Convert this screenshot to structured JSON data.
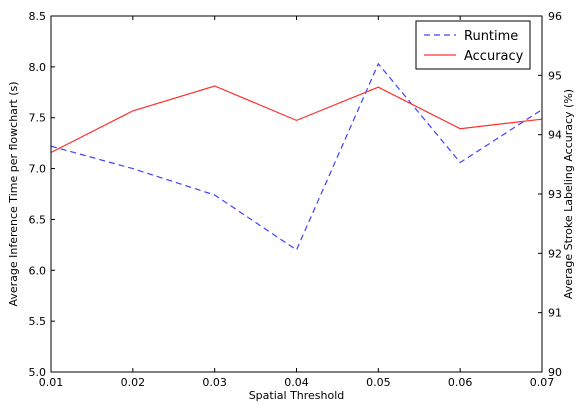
{
  "chart_data": {
    "type": "line",
    "x": [
      0.01,
      0.02,
      0.03,
      0.04,
      0.05,
      0.06,
      0.07
    ],
    "xlabel": "Spatial Threshold",
    "xlim": [
      0.01,
      0.07
    ],
    "x_ticks": [
      "0.01",
      "0.02",
      "0.03",
      "0.04",
      "0.05",
      "0.06",
      "0.07"
    ],
    "ylabel_left": "Average Inference Time per flowchart (s)",
    "ylim_left": [
      5.0,
      8.5
    ],
    "y_ticks_left": [
      "5.0",
      "5.5",
      "6.0",
      "6.5",
      "7.0",
      "7.5",
      "8.0",
      "8.5"
    ],
    "ylabel_right": "Average Stroke Labeling Accuracy (%)",
    "ylim_right": [
      90,
      96
    ],
    "y_ticks_right": [
      "90",
      "91",
      "92",
      "93",
      "94",
      "95",
      "96"
    ],
    "grid": false,
    "legend_position": "top-right",
    "series": [
      {
        "name": "Runtime",
        "axis": "left",
        "style": "dashed",
        "color": "#4040ff",
        "values": [
          7.22,
          7.0,
          6.74,
          6.2,
          8.03,
          7.06,
          7.58
        ]
      },
      {
        "name": "Accuracy",
        "axis": "right",
        "style": "solid",
        "color": "#ff3030",
        "values": [
          93.7,
          94.4,
          94.82,
          94.24,
          94.8,
          94.1,
          94.26
        ]
      }
    ]
  }
}
